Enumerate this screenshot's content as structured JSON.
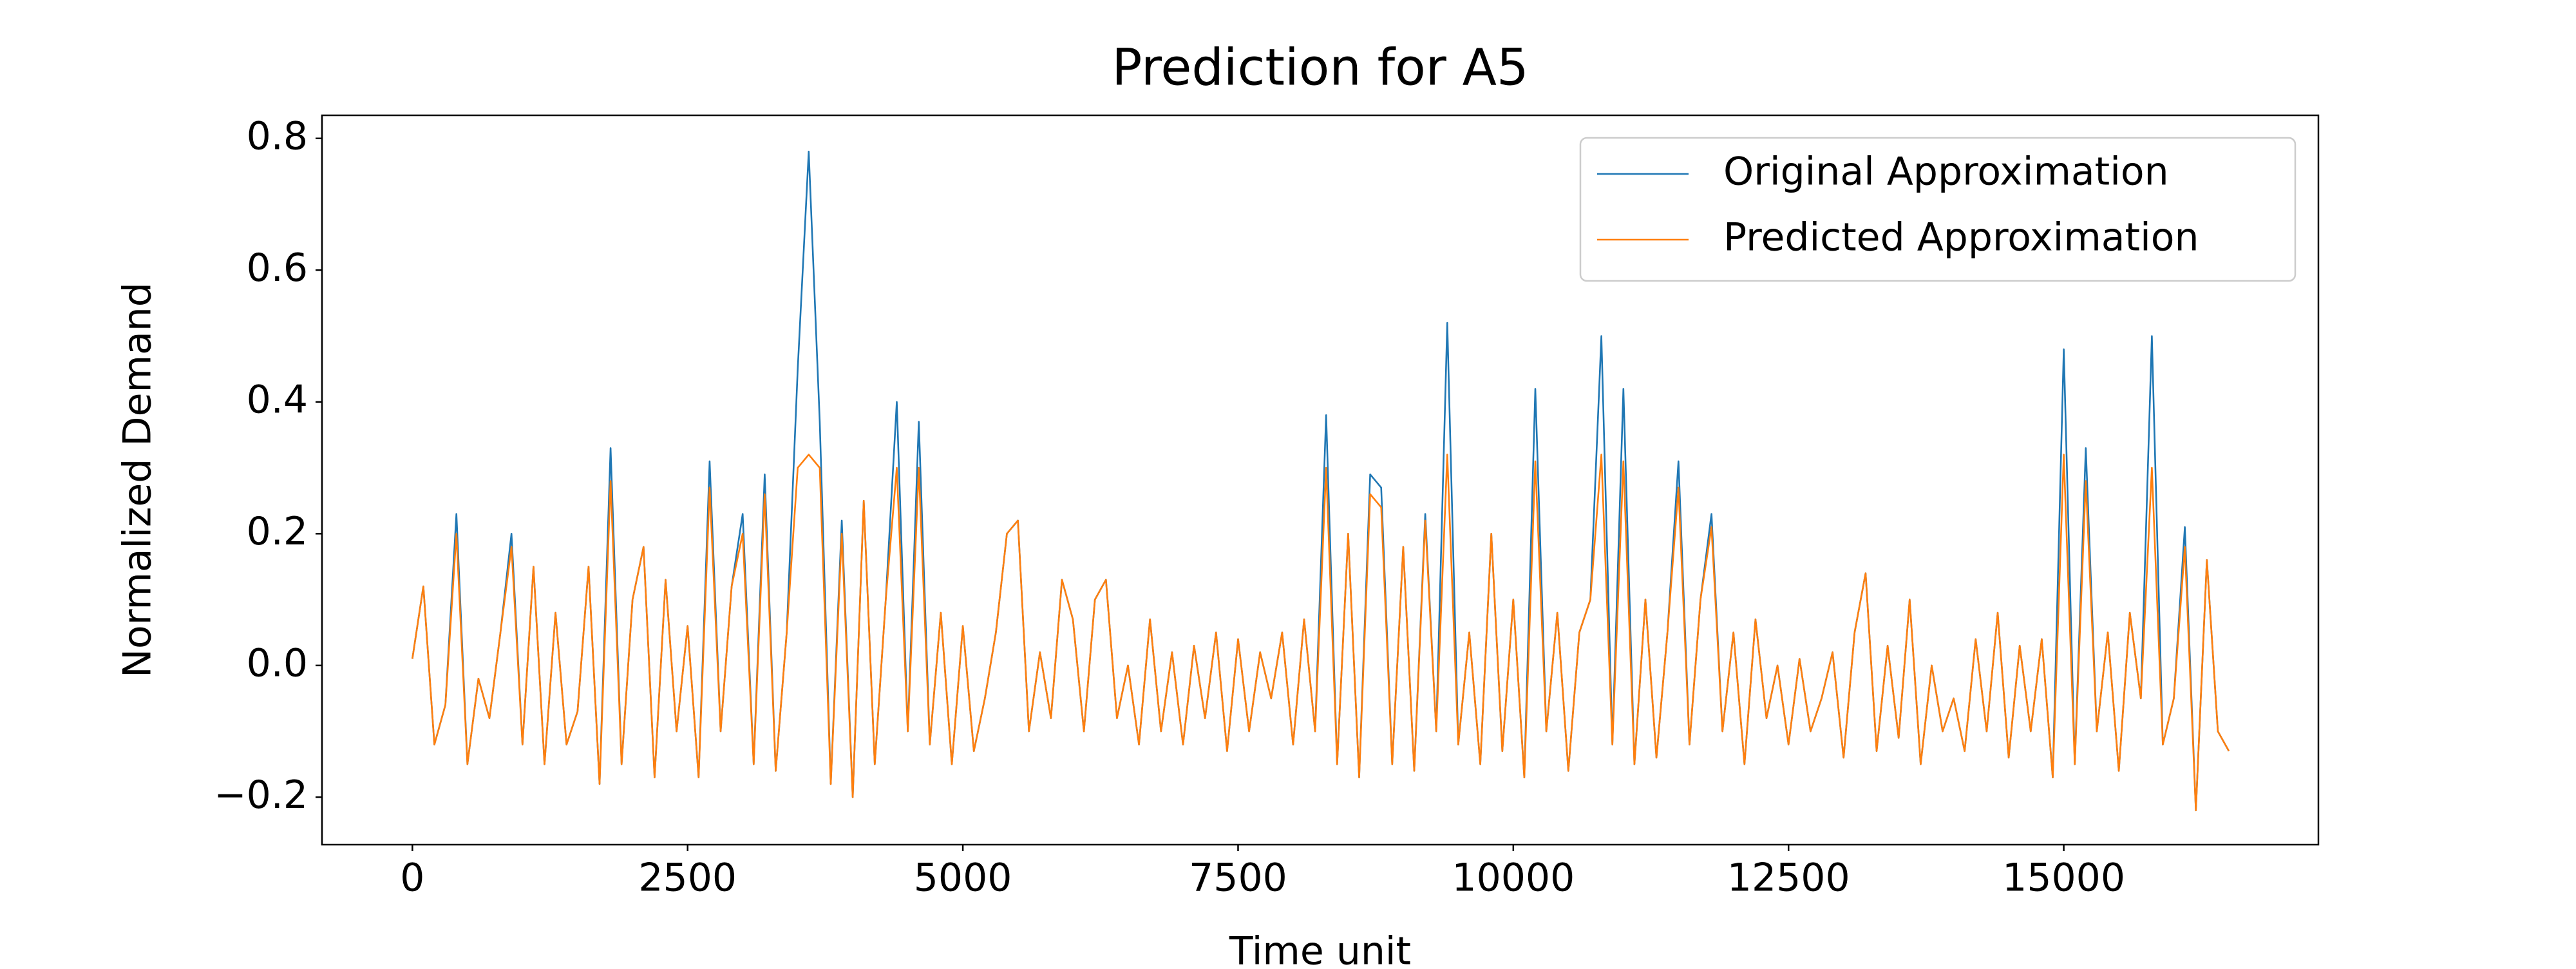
{
  "chart_data": {
    "type": "line",
    "title": "Prediction for A5",
    "x_label": "Time unit",
    "y_label": "Normalized Demand",
    "x": [
      0,
      100,
      200,
      300,
      400,
      500,
      600,
      700,
      800,
      900,
      1000,
      1100,
      1200,
      1300,
      1400,
      1500,
      1600,
      1700,
      1800,
      1900,
      2000,
      2100,
      2200,
      2300,
      2400,
      2500,
      2600,
      2700,
      2800,
      2900,
      3000,
      3100,
      3200,
      3300,
      3400,
      3500,
      3600,
      3700,
      3800,
      3900,
      4000,
      4100,
      4200,
      4300,
      4400,
      4500,
      4600,
      4700,
      4800,
      4900,
      5000,
      5100,
      5200,
      5300,
      5400,
      5500,
      5600,
      5700,
      5800,
      5900,
      6000,
      6100,
      6200,
      6300,
      6400,
      6500,
      6600,
      6700,
      6800,
      6900,
      7000,
      7100,
      7200,
      7300,
      7400,
      7500,
      7600,
      7700,
      7800,
      7900,
      8000,
      8100,
      8200,
      8300,
      8400,
      8500,
      8600,
      8700,
      8800,
      8900,
      9000,
      9100,
      9200,
      9300,
      9400,
      9500,
      9600,
      9700,
      9800,
      9900,
      10000,
      10100,
      10200,
      10300,
      10400,
      10500,
      10600,
      10700,
      10800,
      10900,
      11000,
      11100,
      11200,
      11300,
      11400,
      11500,
      11600,
      11700,
      11800,
      11900,
      12000,
      12100,
      12200,
      12300,
      12400,
      12500,
      12600,
      12700,
      12800,
      12900,
      13000,
      13100,
      13200,
      13300,
      13400,
      13500,
      13600,
      13700,
      13800,
      13900,
      14000,
      14100,
      14200,
      14300,
      14400,
      14500,
      14600,
      14700,
      14800,
      14900,
      15000,
      15100,
      15200,
      15300,
      15400,
      15500,
      15600,
      15700,
      15800,
      15900,
      16000,
      16100,
      16200,
      16300,
      16400,
      16500
    ],
    "series": [
      {
        "name": "Original Approximation",
        "color": "#1f77b4",
        "values": [
          0.01,
          0.12,
          -0.12,
          -0.06,
          0.23,
          -0.15,
          -0.02,
          -0.08,
          0.05,
          0.2,
          -0.12,
          0.15,
          -0.15,
          0.08,
          -0.12,
          -0.07,
          0.15,
          -0.18,
          0.33,
          -0.15,
          0.1,
          0.18,
          -0.17,
          0.13,
          -0.1,
          0.06,
          -0.17,
          0.31,
          -0.1,
          0.12,
          0.23,
          -0.15,
          0.29,
          -0.16,
          0.05,
          0.45,
          0.78,
          0.37,
          -0.18,
          0.22,
          -0.2,
          0.25,
          -0.15,
          0.1,
          0.4,
          -0.1,
          0.37,
          -0.12,
          0.08,
          -0.15,
          0.06,
          -0.13,
          -0.05,
          0.05,
          0.2,
          0.22,
          -0.1,
          0.02,
          -0.08,
          0.13,
          0.07,
          -0.1,
          0.1,
          0.13,
          -0.08,
          0.0,
          -0.12,
          0.07,
          -0.1,
          0.02,
          -0.12,
          0.03,
          -0.08,
          0.05,
          -0.13,
          0.04,
          -0.1,
          0.02,
          -0.05,
          0.05,
          -0.12,
          0.07,
          -0.1,
          0.38,
          -0.15,
          0.2,
          -0.17,
          0.29,
          0.27,
          -0.15,
          0.18,
          -0.16,
          0.23,
          -0.1,
          0.52,
          -0.12,
          0.05,
          -0.15,
          0.2,
          -0.13,
          0.1,
          -0.17,
          0.42,
          -0.1,
          0.08,
          -0.16,
          0.05,
          0.1,
          0.5,
          -0.12,
          0.42,
          -0.15,
          0.1,
          -0.14,
          0.05,
          0.31,
          -0.12,
          0.1,
          0.23,
          -0.1,
          0.05,
          -0.15,
          0.07,
          -0.08,
          0.0,
          -0.12,
          0.01,
          -0.1,
          -0.05,
          0.02,
          -0.14,
          0.05,
          0.14,
          -0.13,
          0.03,
          -0.11,
          0.1,
          -0.15,
          0.0,
          -0.1,
          -0.05,
          -0.13,
          0.04,
          -0.1,
          0.08,
          -0.14,
          0.03,
          -0.1,
          0.04,
          -0.17,
          0.48,
          -0.15,
          0.33,
          -0.1,
          0.05,
          -0.16,
          0.08,
          -0.05,
          0.5,
          -0.12,
          -0.05,
          0.21,
          -0.22,
          0.16,
          -0.1,
          -0.13
        ]
      },
      {
        "name": "Predicted Approximation",
        "color": "#ff7f0e",
        "values": [
          0.01,
          0.12,
          -0.12,
          -0.06,
          0.2,
          -0.15,
          -0.02,
          -0.08,
          0.05,
          0.18,
          -0.12,
          0.15,
          -0.15,
          0.08,
          -0.12,
          -0.07,
          0.15,
          -0.18,
          0.28,
          -0.15,
          0.1,
          0.18,
          -0.17,
          0.13,
          -0.1,
          0.06,
          -0.17,
          0.27,
          -0.1,
          0.12,
          0.2,
          -0.15,
          0.26,
          -0.16,
          0.05,
          0.3,
          0.32,
          0.3,
          -0.18,
          0.2,
          -0.2,
          0.25,
          -0.15,
          0.1,
          0.3,
          -0.1,
          0.3,
          -0.12,
          0.08,
          -0.15,
          0.06,
          -0.13,
          -0.05,
          0.05,
          0.2,
          0.22,
          -0.1,
          0.02,
          -0.08,
          0.13,
          0.07,
          -0.1,
          0.1,
          0.13,
          -0.08,
          0.0,
          -0.12,
          0.07,
          -0.1,
          0.02,
          -0.12,
          0.03,
          -0.08,
          0.05,
          -0.13,
          0.04,
          -0.1,
          0.02,
          -0.05,
          0.05,
          -0.12,
          0.07,
          -0.1,
          0.3,
          -0.15,
          0.2,
          -0.17,
          0.26,
          0.24,
          -0.15,
          0.18,
          -0.16,
          0.22,
          -0.1,
          0.32,
          -0.12,
          0.05,
          -0.15,
          0.2,
          -0.13,
          0.1,
          -0.17,
          0.31,
          -0.1,
          0.08,
          -0.16,
          0.05,
          0.1,
          0.32,
          -0.12,
          0.31,
          -0.15,
          0.1,
          -0.14,
          0.05,
          0.27,
          -0.12,
          0.1,
          0.21,
          -0.1,
          0.05,
          -0.15,
          0.07,
          -0.08,
          0.0,
          -0.12,
          0.01,
          -0.1,
          -0.05,
          0.02,
          -0.14,
          0.05,
          0.14,
          -0.13,
          0.03,
          -0.11,
          0.1,
          -0.15,
          0.0,
          -0.1,
          -0.05,
          -0.13,
          0.04,
          -0.1,
          0.08,
          -0.14,
          0.03,
          -0.1,
          0.04,
          -0.17,
          0.32,
          -0.15,
          0.28,
          -0.1,
          0.05,
          -0.16,
          0.08,
          -0.05,
          0.3,
          -0.12,
          -0.05,
          0.18,
          -0.22,
          0.16,
          -0.1,
          -0.13
        ]
      }
    ],
    "xlim": [
      -821,
      17313
    ],
    "xticks": [
      0,
      2500,
      5000,
      7500,
      10000,
      12500,
      15000
    ],
    "ylim": [
      -0.272,
      0.835
    ],
    "yticks": [
      {
        "value": -0.2,
        "label": "−0.2"
      },
      {
        "value": 0,
        "label": "0.0"
      },
      0.2,
      0.4,
      0.6,
      0.8
    ],
    "grid": false,
    "legend": "upper right"
  }
}
